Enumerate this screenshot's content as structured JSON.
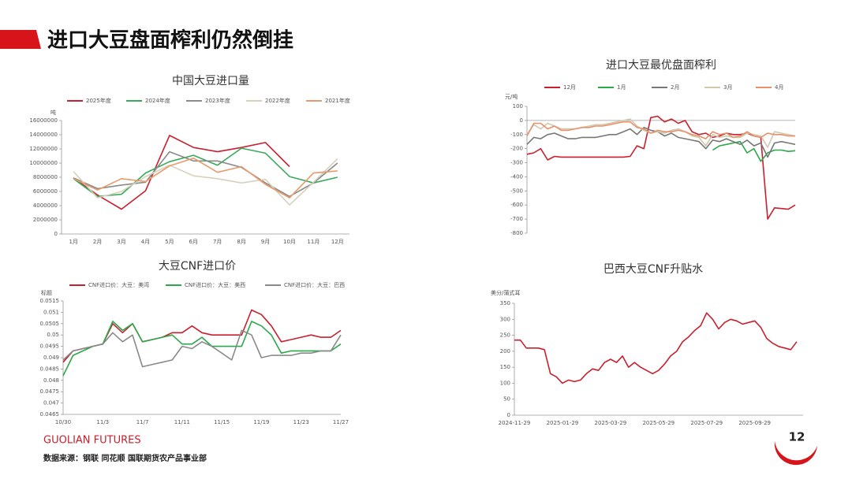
{
  "title": "进口大豆盘面榨利仍然倒挂",
  "brand": "GUOLIAN FUTURES",
  "source": "数据来源：钢联 同花顺 国联期货农产品事业部",
  "page_number": 12,
  "chart_data": [
    {
      "type": "line",
      "title": "中国大豆进口量",
      "ylabel": "吨",
      "categories": [
        "1月",
        "2月",
        "3月",
        "4月",
        "5月",
        "6月",
        "7月",
        "8月",
        "9月",
        "10月",
        "11月",
        "12月"
      ],
      "ylim": [
        0,
        16000000
      ],
      "yticks": [
        0,
        2000000,
        4000000,
        6000000,
        8000000,
        10000000,
        12000000,
        14000000,
        16000000
      ],
      "series": [
        {
          "name": "2025年度",
          "color": "#c8202e",
          "values": [
            7900000,
            5500000,
            3500000,
            6100000,
            13900000,
            12200000,
            11600000,
            12200000,
            12900000,
            9500000,
            null,
            null
          ]
        },
        {
          "name": "2024年度",
          "color": "#3aaa5a",
          "values": [
            7800000,
            5300000,
            5600000,
            8600000,
            10200000,
            11100000,
            9700000,
            12100000,
            11400000,
            8100000,
            7200000,
            8000000
          ]
        },
        {
          "name": "2023年度",
          "color": "#8a8a8a",
          "values": [
            7900000,
            6400000,
            6900000,
            7300000,
            11600000,
            10300000,
            10300000,
            9400000,
            7200000,
            5300000,
            7200000,
            10000000
          ]
        },
        {
          "name": "2022年度",
          "color": "#d8d0bc",
          "values": [
            8800000,
            5100000,
            6000000,
            8100000,
            9700000,
            8200000,
            7800000,
            7200000,
            7700000,
            4100000,
            7300000,
            10600000
          ]
        },
        {
          "name": "2021年度",
          "color": "#e89a6a",
          "values": [
            7800000,
            6200000,
            7800000,
            7400000,
            9600000,
            10700000,
            8700000,
            9500000,
            7000000,
            5100000,
            8600000,
            8900000
          ]
        }
      ]
    },
    {
      "type": "line",
      "title": "进口大豆最优盘面榨利",
      "ylabel": "元/吨",
      "ylim": [
        -800,
        100
      ],
      "yticks": [
        -800,
        -700,
        -600,
        -500,
        -400,
        -300,
        -200,
        -100,
        0,
        100
      ],
      "series": [
        {
          "name": "12月",
          "color": "#c8202e",
          "values": [
            -240,
            -230,
            -200,
            -280,
            -255,
            -260,
            -260,
            -260,
            -260,
            -260,
            -260,
            -260,
            -260,
            -260,
            -260,
            -255,
            -180,
            -200,
            20,
            30,
            -10,
            10,
            -20,
            0,
            -80,
            -100,
            -90,
            -120,
            -110,
            -90,
            -100,
            -100,
            -90,
            -110,
            -120,
            -700,
            -620,
            -625,
            -630,
            -600
          ]
        },
        {
          "name": "1月",
          "color": "#2aa84a",
          "values": [
            null,
            null,
            null,
            null,
            null,
            null,
            null,
            null,
            null,
            null,
            null,
            null,
            null,
            null,
            null,
            null,
            null,
            null,
            null,
            null,
            null,
            null,
            null,
            null,
            null,
            null,
            null,
            -210,
            -180,
            -170,
            -160,
            -150,
            -230,
            -200,
            -290,
            -230,
            -210,
            -210,
            -220,
            -215
          ]
        },
        {
          "name": "2月",
          "color": "#777777",
          "values": [
            -170,
            -120,
            -130,
            -100,
            -90,
            -110,
            -130,
            -130,
            -120,
            -120,
            -120,
            -110,
            -100,
            -100,
            -80,
            -60,
            -100,
            -50,
            -70,
            -80,
            -110,
            -90,
            -120,
            -130,
            -140,
            -150,
            -200,
            -140,
            -150,
            -130,
            -150,
            -170,
            -140,
            -180,
            -160,
            -260,
            -160,
            -150,
            -160,
            -170
          ]
        },
        {
          "name": "3月",
          "color": "#cfc9b0",
          "values": [
            -100,
            -30,
            -60,
            -20,
            -40,
            -60,
            -60,
            -60,
            -50,
            -40,
            -30,
            -30,
            -20,
            -10,
            0,
            10,
            -40,
            -70,
            -90,
            -80,
            -90,
            -70,
            -60,
            -80,
            -110,
            -120,
            -180,
            -100,
            -120,
            -110,
            -120,
            -120,
            -90,
            -100,
            -110,
            -190,
            -80,
            -90,
            -100,
            -110
          ]
        },
        {
          "name": "4月",
          "color": "#e8906a",
          "values": [
            -110,
            -20,
            -20,
            -60,
            -40,
            -70,
            -70,
            -60,
            -50,
            -50,
            -40,
            -40,
            -30,
            -20,
            -10,
            -10,
            -50,
            -60,
            -90,
            -70,
            -80,
            -80,
            -70,
            -80,
            -100,
            -110,
            -130,
            -80,
            -100,
            -90,
            -120,
            -110,
            -80,
            -110,
            -120,
            -90,
            -100,
            -100,
            -110,
            -110
          ]
        }
      ]
    },
    {
      "type": "line",
      "title": "大豆CNF进口价",
      "ylabel": "标题",
      "categories": [
        "10/30",
        null,
        null,
        null,
        "11/3",
        null,
        null,
        null,
        "11/7",
        null,
        null,
        null,
        "11/11",
        null,
        null,
        null,
        "11/15",
        null,
        null,
        null,
        "11/19",
        null,
        null,
        null,
        "11/23",
        null,
        null,
        null,
        "11/27"
      ],
      "ylim": [
        0.0465,
        0.0515
      ],
      "yticks": [
        0.0465,
        0.047,
        0.0475,
        0.048,
        0.0485,
        0.049,
        0.0495,
        0.05,
        0.0505,
        0.051,
        0.0515
      ],
      "series": [
        {
          "name": "CNF进口价：大豆：美湾",
          "color": "#c8202e",
          "values": [
            0.0488,
            0.0493,
            0.0494,
            0.0495,
            0.0496,
            0.0505,
            0.0501,
            0.0505,
            0.0497,
            0.0498,
            0.0499,
            0.0501,
            0.0501,
            0.0504,
            0.0501,
            0.05,
            0.05,
            0.05,
            0.05,
            0.0511,
            0.0509,
            0.0504,
            0.0497,
            0.0498,
            0.0499,
            0.05,
            0.0499,
            0.0499,
            0.0502
          ]
        },
        {
          "name": "CNF进口价：大豆：美西",
          "color": "#2aa84a",
          "values": [
            0.0482,
            0.0491,
            0.0493,
            0.0495,
            0.0496,
            0.0506,
            0.0502,
            0.0505,
            0.0497,
            0.0498,
            0.0499,
            0.05,
            0.0496,
            0.0496,
            0.0499,
            0.0495,
            0.0495,
            0.0495,
            0.0495,
            0.0506,
            0.0504,
            0.05,
            0.0492,
            0.0493,
            0.0493,
            0.0493,
            0.0493,
            0.0493,
            0.0496
          ]
        },
        {
          "name": "CNF进口价：大豆：巴西",
          "color": "#8a8a8a",
          "values": [
            0.0489,
            0.0493,
            0.0494,
            0.0495,
            0.0496,
            0.0501,
            0.0497,
            0.05,
            0.0486,
            0.0487,
            0.0488,
            0.0489,
            0.0495,
            0.0494,
            0.0497,
            0.0495,
            0.0492,
            0.0489,
            0.0502,
            0.05,
            0.049,
            0.0491,
            0.0491,
            0.0491,
            0.0492,
            0.0492,
            0.0493,
            0.0493,
            0.05
          ]
        }
      ]
    },
    {
      "type": "line",
      "title": "巴西大豆CNF升贴水",
      "ylabel": "美分/蒲式耳",
      "categories": [
        "2024-11-29",
        null,
        null,
        null,
        null,
        null,
        null,
        null,
        "2025-01-29",
        null,
        null,
        null,
        null,
        null,
        null,
        null,
        "2025-03-29",
        null,
        null,
        null,
        null,
        null,
        null,
        null,
        "2025-05-29",
        null,
        null,
        null,
        null,
        null,
        null,
        null,
        "2025-07-29",
        null,
        null,
        null,
        null,
        null,
        null,
        null,
        "2025-09-29",
        null,
        null,
        null,
        null,
        null,
        null,
        null
      ],
      "ylim": [
        0,
        350
      ],
      "yticks": [
        0,
        50,
        100,
        150,
        200,
        250,
        300,
        350
      ],
      "series": [
        {
          "color": "#c8202e",
          "values": [
            235,
            235,
            210,
            210,
            210,
            205,
            130,
            120,
            100,
            110,
            105,
            110,
            130,
            145,
            140,
            165,
            175,
            165,
            185,
            150,
            165,
            150,
            140,
            130,
            140,
            160,
            185,
            200,
            230,
            245,
            265,
            280,
            320,
            300,
            270,
            290,
            300,
            295,
            285,
            290,
            295,
            275,
            240,
            225,
            215,
            210,
            205,
            230
          ]
        }
      ]
    }
  ]
}
